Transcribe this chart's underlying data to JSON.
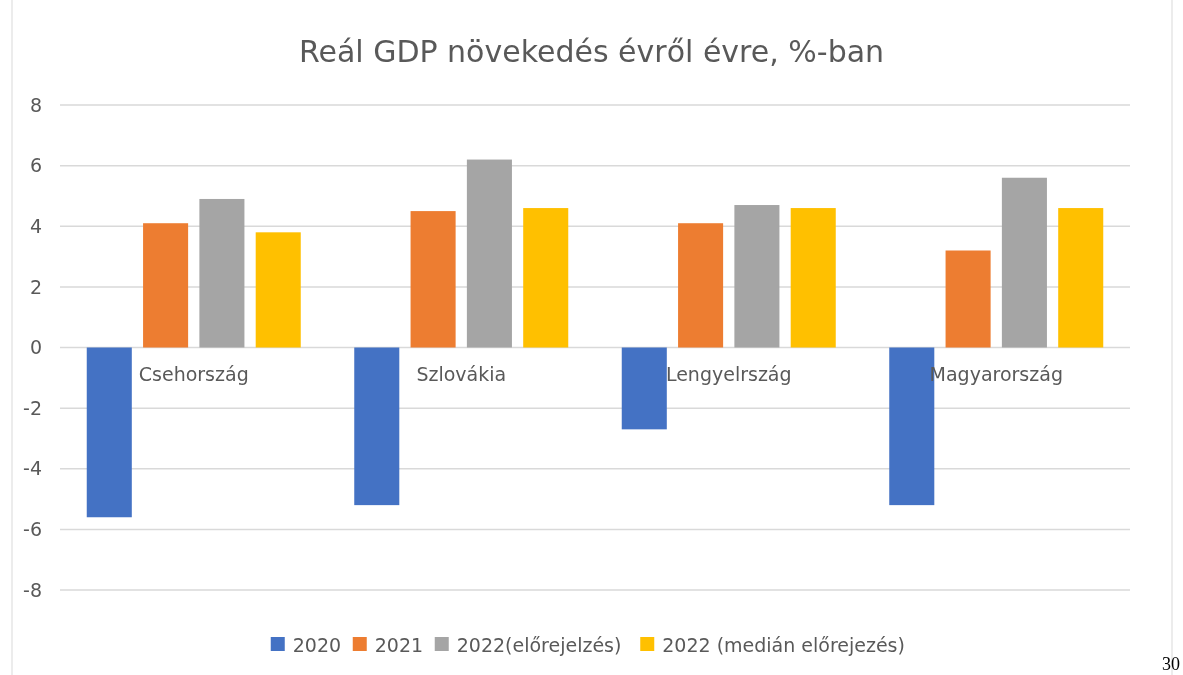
{
  "chart_data": {
    "type": "bar",
    "title": "Reál GDP növekedés évről évre, %-ban",
    "categories": [
      "Csehország",
      "Szlovákia",
      "Lengyelrszág",
      "Magyarország"
    ],
    "series": [
      {
        "name": "2020",
        "color": "#4472c4",
        "values": [
          -5.6,
          -5.2,
          -2.7,
          -5.2
        ]
      },
      {
        "name": "2021",
        "color": "#ed7d31",
        "values": [
          4.1,
          4.5,
          4.1,
          3.2
        ]
      },
      {
        "name": "2022(előrejelzés)",
        "color": "#a5a5a5",
        "values": [
          4.9,
          6.2,
          4.7,
          5.6
        ]
      },
      {
        "name": "2022 (medián előrejezés)",
        "color": "#ffc000",
        "values": [
          3.8,
          4.6,
          4.6,
          4.6
        ]
      }
    ],
    "ylim": [
      -8,
      8
    ],
    "yticks": [
      -8,
      -6,
      -4,
      -2,
      0,
      2,
      4,
      6,
      8
    ],
    "grid": "y",
    "legend": "bottom",
    "annotations": [
      "30"
    ]
  }
}
